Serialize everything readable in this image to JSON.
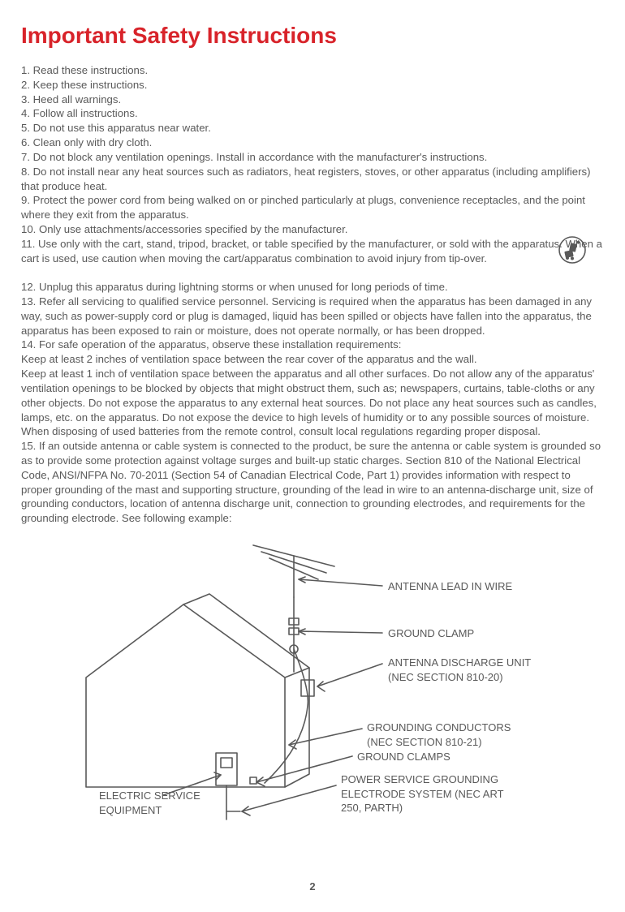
{
  "title": {
    "text": "Important Safety Instructions",
    "color": "#d8232a"
  },
  "text_color": "#595959",
  "body_lines": [
    "1.   Read these instructions.",
    "2.  Keep these instructions.",
    "3.  Heed all warnings.",
    "4.  Follow all instructions.",
    "5.  Do not use this apparatus near water.",
    "6.  Clean only with dry cloth.",
    "7.  Do not block any ventilation openings. Install in accordance with the manufacturer's instructions.",
    "8.  Do not install near any heat sources such as radiators, heat registers, stoves, or other apparatus (including amplifiers) that produce heat.",
    "9.  Protect the power cord from being walked on or pinched particularly at plugs, convenience receptacles, and the point where they exit from the apparatus.",
    "10. Only use attachments/accessories specified by the manufacturer.",
    "11.  Use only with the cart, stand, tripod, bracket, or table specified by the manufacturer, or sold with the apparatus. When a cart is used, use caution when moving the cart/apparatus combination to avoid injury from tip-over.",
    "",
    "12. Unplug this apparatus during lightning storms or when unused for long periods of time.",
    "13. Refer all servicing to qualified service personnel. Servicing is required when the apparatus has been damaged in any way, such as power-supply cord or plug is damaged, liquid has been spilled or objects have fallen into the apparatus, the apparatus has been exposed to rain or moisture, does not operate normally, or has been dropped.",
    "14. For safe operation of the apparatus, observe these installation requirements:",
    "Keep at least 2 inches of ventilation space between the rear cover of the apparatus and the wall.",
    "Keep at least 1 inch of ventilation space between the apparatus and all other surfaces. Do not allow any of the apparatus' ventilation openings to be blocked by objects that might obstruct them, such as; newspapers, curtains, table-cloths or any other objects. Do not expose the apparatus to any external heat sources.  Do not place any heat sources such as candles, lamps, etc. on the apparatus. Do not expose the device to high levels of humidity or to any possible sources of moisture. When disposing of used batteries from the remote control, consult local regulations regarding proper disposal.",
    "15. If an outside antenna or cable system is connected to the product, be sure the antenna or cable system is grounded so as to provide some protection against voltage surges and built-up static charges. Section 810 of the National Electrical Code, ANSI/NFPA No. 70-2011 (Section 54 of Canadian Electrical Code, Part 1) provides information with respect to proper grounding of the mast and supporting structure, grounding of the lead in wire to an antenna-discharge unit, size of grounding conductors, location of antenna discharge unit, connection to grounding electrodes, and requirements for the grounding electrode. See following example:"
  ],
  "diagram": {
    "stroke": "#595959",
    "labels": {
      "antenna_lead": "ANTENNA LEAD IN WIRE",
      "ground_clamp": "GROUND CLAMP",
      "antenna_discharge_1": "ANTENNA DISCHARGE UNIT",
      "antenna_discharge_2": "(NEC SECTION 810-20)",
      "grounding_conductors_1": "GROUNDING CONDUCTORS",
      "grounding_conductors_2": "(NEC SECTION 810-21)",
      "ground_clamps": "GROUND CLAMPS",
      "power_service_1": "POWER SERVICE GROUNDING",
      "power_service_2": "ELECTRODE SYSTEM (NEC ART",
      "power_service_3": "250, PARTH)",
      "electric_service_1": "ELECTRIC SERVICE",
      "electric_service_2": "EQUIPMENT"
    }
  },
  "page_number": "2"
}
